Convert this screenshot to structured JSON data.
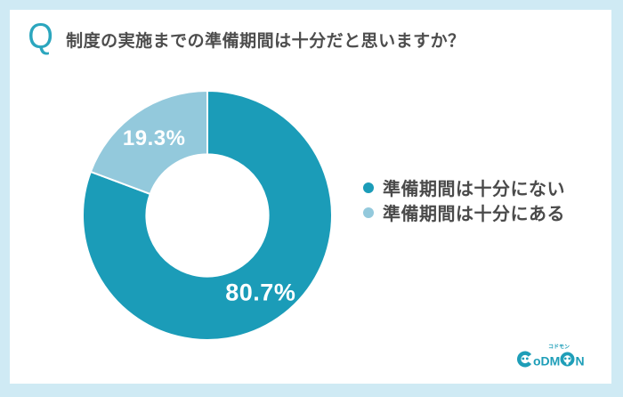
{
  "header": {
    "q_mark": "Q",
    "title": "制度の実施までの準備期間は十分だと思いますか？"
  },
  "chart_data": {
    "type": "pie",
    "donut": true,
    "title": "制度の実施までの準備期間は十分だと思いますか？",
    "labels": [
      "準備期間は十分にない",
      "準備期間は十分にある"
    ],
    "values": [
      80.7,
      19.3
    ],
    "data_labels": [
      "80.7%",
      "19.3%"
    ],
    "colors": [
      "#1b9cb8",
      "#93c9dc"
    ],
    "start_angle_deg": 0,
    "direction": "clockwise",
    "inner_radius_ratio": 0.49,
    "legend_position": "right",
    "data_label_color": "#ffffff"
  },
  "logo": {
    "name": "CoDMON",
    "katakana": "コドモン"
  },
  "colors": {
    "background": "#cfeaf4",
    "card": "#ffffff",
    "accent_teal": "#1b9cb8",
    "light_blue": "#93c9dc",
    "title_gray": "#4d4d4d",
    "q_teal": "#2ba6be",
    "logo_teal": "#1e9eb8"
  }
}
